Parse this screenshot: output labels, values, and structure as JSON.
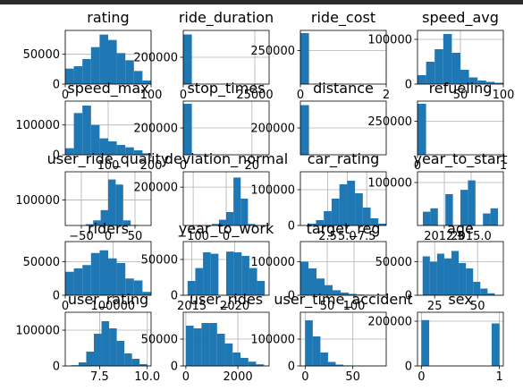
{
  "chart_data": {
    "type": "bar",
    "kind": "histogram-grid",
    "grid": true,
    "bar_color": "#1f77b4",
    "charts": [
      {
        "title": "rating",
        "xlim": [
          0,
          100
        ],
        "ylim": [
          0,
          90000
        ],
        "xticks": [
          {
            "v": 0,
            "t": "0"
          },
          {
            "v": 100,
            "t": "100"
          }
        ],
        "yticks": [
          {
            "v": 0,
            "t": "0"
          },
          {
            "v": 50000,
            "t": "50000"
          }
        ],
        "bins": [
          0,
          10,
          20,
          30,
          40,
          50,
          60,
          70,
          80,
          90,
          100
        ],
        "values": [
          26000,
          30000,
          42000,
          62000,
          83000,
          74000,
          52000,
          40000,
          22000,
          6000
        ]
      },
      {
        "title": "ride_duration",
        "xlim": [
          0,
          30000
        ],
        "ylim": [
          0,
          400000
        ],
        "xticks": [
          {
            "v": 0,
            "t": "0"
          },
          {
            "v": 25000,
            "t": "25000"
          }
        ],
        "yticks": [
          {
            "v": 200000,
            "t": "200000"
          }
        ],
        "bins": [
          0,
          3000,
          6000,
          9000,
          12000,
          15000,
          18000,
          21000,
          24000,
          27000,
          30000
        ],
        "values": [
          370000,
          0,
          0,
          0,
          0,
          0,
          0,
          0,
          0,
          0
        ]
      },
      {
        "title": "ride_cost",
        "xlim": [
          0,
          2
        ],
        "ylim": [
          0,
          400000
        ],
        "xticks": [
          {
            "v": 0,
            "t": "0"
          },
          {
            "v": 2,
            "t": "2"
          }
        ],
        "yticks": [
          {
            "v": 250000,
            "t": "250000"
          }
        ],
        "bins": [
          0,
          0.2,
          0.4,
          0.6,
          0.8,
          1.0,
          1.2,
          1.4,
          1.6,
          1.8,
          2.0
        ],
        "values": [
          380000,
          0,
          0,
          0,
          0,
          0,
          0,
          0,
          0,
          0
        ]
      },
      {
        "title": "speed_avg",
        "xlim": [
          0,
          100
        ],
        "ylim": [
          0,
          120000
        ],
        "xticks": [
          {
            "v": 50,
            "t": "50"
          },
          {
            "v": 100,
            "t": "100"
          }
        ],
        "yticks": [
          {
            "v": 0,
            "t": "0"
          },
          {
            "v": 100000,
            "t": "100000"
          }
        ],
        "bins": [
          0,
          10,
          20,
          30,
          40,
          50,
          60,
          70,
          80,
          90,
          100
        ],
        "values": [
          20000,
          50000,
          78000,
          112000,
          70000,
          32000,
          15000,
          8000,
          5000,
          3000
        ]
      },
      {
        "title": "speed_max",
        "xlim": [
          0,
          200
        ],
        "ylim": [
          0,
          180000
        ],
        "xticks": [
          {
            "v": 100,
            "t": "100"
          },
          {
            "v": 200,
            "t": "200"
          }
        ],
        "yticks": [
          {
            "v": 0,
            "t": "0"
          },
          {
            "v": 100000,
            "t": "100000"
          }
        ],
        "bins": [
          0,
          20,
          40,
          60,
          80,
          100,
          120,
          140,
          160,
          180,
          200
        ],
        "values": [
          22000,
          140000,
          165000,
          100000,
          55000,
          45000,
          33000,
          25000,
          15000,
          5000
        ]
      },
      {
        "title": "stop_times",
        "xlim": [
          0,
          25
        ],
        "ylim": [
          0,
          400000
        ],
        "xticks": [
          {
            "v": 0,
            "t": "0"
          },
          {
            "v": 20,
            "t": "20"
          }
        ],
        "yticks": [
          {
            "v": 200000,
            "t": "200000"
          }
        ],
        "bins": [
          0,
          2.5,
          5,
          7.5,
          10,
          12.5,
          15,
          17.5,
          20,
          22.5,
          25
        ],
        "values": [
          380000,
          4000,
          1000,
          0,
          0,
          0,
          0,
          0,
          0,
          0
        ]
      },
      {
        "title": "distance",
        "xlim": [
          0,
          10
        ],
        "ylim": [
          0,
          400000
        ],
        "xticks": [],
        "yticks": [
          {
            "v": 200000,
            "t": "200000"
          }
        ],
        "bins": [
          0,
          1,
          2,
          3,
          4,
          5,
          6,
          7,
          8,
          9,
          10
        ],
        "values": [
          370000,
          0,
          0,
          0,
          0,
          0,
          0,
          0,
          0,
          0
        ]
      },
      {
        "title": "refueling",
        "xlim": [
          0,
          1
        ],
        "ylim": [
          0,
          400000
        ],
        "xticks": [
          {
            "v": 0,
            "t": "0"
          },
          {
            "v": 1,
            "t": "1"
          }
        ],
        "yticks": [
          {
            "v": 250000,
            "t": "250000"
          }
        ],
        "bins": [
          0,
          0.1,
          0.2,
          0.3,
          0.4,
          0.5,
          0.6,
          0.7,
          0.8,
          0.9,
          1.0
        ],
        "values": [
          380000,
          0,
          0,
          0,
          0,
          0,
          0,
          0,
          0,
          0
        ]
      },
      {
        "title": "user_ride_quality",
        "xlim": [
          -80,
          80
        ],
        "ylim": [
          0,
          210000
        ],
        "xticks": [
          {
            "v": -50,
            "t": "−50"
          },
          {
            "v": 0,
            "t": "0"
          },
          {
            "v": 50,
            "t": "50"
          }
        ],
        "yticks": [
          {
            "v": 100000,
            "t": "100000"
          }
        ],
        "bins": [
          -70,
          -56,
          -42,
          -28,
          -14,
          0,
          14,
          28,
          42,
          56,
          70
        ],
        "values": [
          0,
          0,
          5000,
          20000,
          60000,
          180000,
          160000,
          20000,
          2000,
          0
        ]
      },
      {
        "title": "deviation_normal",
        "xlim": [
          -130,
          130
        ],
        "ylim": [
          0,
          280000
        ],
        "xticks": [
          {
            "v": -100,
            "t": "−100"
          },
          {
            "v": 0,
            "t": "0"
          }
        ],
        "yticks": [
          {
            "v": 200000,
            "t": "200000"
          }
        ],
        "bins": [
          -110,
          -88,
          -66,
          -44,
          -22,
          0,
          22,
          44,
          66,
          88,
          110
        ],
        "values": [
          0,
          1000,
          2000,
          8000,
          30000,
          70000,
          250000,
          140000,
          8000,
          1000
        ]
      },
      {
        "title": "car_rating",
        "xlim": [
          -1,
          10
        ],
        "ylim": [
          0,
          150000
        ],
        "xticks": [
          {
            "v": 2.5,
            "t": "2.5"
          },
          {
            "v": 5.0,
            "t": "5.0"
          },
          {
            "v": 7.5,
            "t": "7.5"
          }
        ],
        "yticks": [
          {
            "v": 0,
            "t": "0"
          },
          {
            "v": 100000,
            "t": "100000"
          }
        ],
        "bins": [
          0,
          1,
          2,
          3,
          4,
          5,
          6,
          7,
          8,
          9,
          10
        ],
        "values": [
          5000,
          15000,
          40000,
          75000,
          115000,
          125000,
          90000,
          50000,
          20000,
          5000
        ]
      },
      {
        "title": "year_to_start",
        "xlim": [
          2010,
          2018
        ],
        "ylim": [
          0,
          125000
        ],
        "xticks": [
          {
            "v": 2012.5,
            "t": "2012.5"
          },
          {
            "v": 2015.0,
            "t": "2015.0"
          }
        ],
        "yticks": [
          {
            "v": 100000,
            "t": "100000"
          }
        ],
        "bins": [
          2010.5,
          2011.2,
          2011.9,
          2012.6,
          2013.3,
          2014,
          2014.7,
          2015.4,
          2016.1,
          2016.8,
          2017.5
        ],
        "values": [
          32000,
          40000,
          0,
          73000,
          0,
          83000,
          105000,
          0,
          28000,
          40000
        ]
      },
      {
        "title": "riders",
        "xlim": [
          0,
          180000
        ],
        "ylim": [
          0,
          80000
        ],
        "xticks": [
          {
            "v": 0,
            "t": "0"
          },
          {
            "v": 100000,
            "t": "100000"
          }
        ],
        "yticks": [
          {
            "v": 0,
            "t": "0"
          },
          {
            "v": 50000,
            "t": "50000"
          }
        ],
        "bins": [
          0,
          18000,
          36000,
          54000,
          72000,
          90000,
          108000,
          126000,
          144000,
          162000,
          180000
        ],
        "values": [
          35000,
          40000,
          45000,
          63000,
          67000,
          55000,
          48000,
          25000,
          22000,
          5000
        ]
      },
      {
        "title": "year_to_work",
        "xlim": [
          2014,
          2024
        ],
        "ylim": [
          0,
          75000
        ],
        "xticks": [
          {
            "v": 2015,
            "t": "2015"
          },
          {
            "v": 2020,
            "t": "2020"
          }
        ],
        "yticks": [
          {
            "v": 0,
            "t": "0"
          },
          {
            "v": 50000,
            "t": "50000"
          }
        ],
        "bins": [
          2014.5,
          2015.4,
          2016.3,
          2017.2,
          2018.1,
          2019,
          2019.9,
          2020.8,
          2021.7,
          2022.6,
          2023.5
        ],
        "values": [
          20000,
          38000,
          60000,
          58000,
          0,
          61000,
          60000,
          55000,
          38000,
          20000
        ]
      },
      {
        "title": "target_reg",
        "xlim": [
          0,
          160
        ],
        "ylim": [
          0,
          160000
        ],
        "xticks": [
          {
            "v": 50,
            "t": "50"
          },
          {
            "v": 100,
            "t": "100"
          }
        ],
        "yticks": [
          {
            "v": 0,
            "t": "0"
          },
          {
            "v": 100000,
            "t": "100000"
          }
        ],
        "bins": [
          0,
          15,
          30,
          45,
          60,
          75,
          90,
          105,
          120,
          135,
          150
        ],
        "values": [
          100000,
          80000,
          50000,
          30000,
          15000,
          8000,
          4000,
          2000,
          1000,
          500
        ]
      },
      {
        "title": "age",
        "xlim": [
          15,
          65
        ],
        "ylim": [
          0,
          80000
        ],
        "xticks": [
          {
            "v": 25,
            "t": "25"
          },
          {
            "v": 50,
            "t": "50"
          }
        ],
        "yticks": [
          {
            "v": 0,
            "t": "0"
          },
          {
            "v": 50000,
            "t": "50000"
          }
        ],
        "bins": [
          18,
          22.2,
          26.4,
          30.6,
          34.8,
          39,
          43.2,
          47.4,
          51.6,
          55.8,
          60
        ],
        "values": [
          58000,
          50000,
          62000,
          55000,
          66000,
          48000,
          40000,
          20000,
          10000,
          3000
        ]
      },
      {
        "title": "user_rating",
        "xlim": [
          5.7,
          10.2
        ],
        "ylim": [
          0,
          150000
        ],
        "xticks": [
          {
            "v": 7.5,
            "t": "7.5"
          },
          {
            "v": 10.0,
            "t": "10.0"
          }
        ],
        "yticks": [
          {
            "v": 0,
            "t": "0"
          },
          {
            "v": 100000,
            "t": "100000"
          }
        ],
        "bins": [
          6,
          6.4,
          6.8,
          7.2,
          7.6,
          8.0,
          8.4,
          8.8,
          9.2,
          9.6,
          10
        ],
        "values": [
          2000,
          10000,
          40000,
          90000,
          125000,
          105000,
          70000,
          35000,
          20000,
          5000
        ]
      },
      {
        "title": "user_rides",
        "xlim": [
          -100,
          3200
        ],
        "ylim": [
          0,
          100000
        ],
        "xticks": [
          {
            "v": 0,
            "t": "0"
          },
          {
            "v": 2000,
            "t": "2000"
          }
        ],
        "yticks": [
          {
            "v": 0,
            "t": "0"
          },
          {
            "v": 50000,
            "t": "50000"
          }
        ],
        "bins": [
          0,
          300,
          600,
          900,
          1200,
          1500,
          1800,
          2100,
          2400,
          2700,
          3000
        ],
        "values": [
          75000,
          70000,
          80000,
          80000,
          60000,
          42000,
          25000,
          15000,
          8000,
          3000
        ]
      },
      {
        "title": "user_time_accident",
        "xlim": [
          -5,
          85
        ],
        "ylim": [
          0,
          200000
        ],
        "xticks": [
          {
            "v": 0,
            "t": "0"
          },
          {
            "v": 50,
            "t": "50"
          }
        ],
        "yticks": [
          {
            "v": 0,
            "t": "0"
          },
          {
            "v": 100000,
            "t": "100000"
          }
        ],
        "bins": [
          0,
          8,
          16,
          24,
          32,
          40,
          48,
          56,
          64,
          72,
          80
        ],
        "values": [
          170000,
          110000,
          50000,
          15000,
          5000,
          2000,
          1000,
          500,
          0,
          0
        ]
      },
      {
        "title": "sex",
        "xlim": [
          -0.05,
          1.05
        ],
        "ylim": [
          0,
          240000
        ],
        "xticks": [
          {
            "v": 0,
            "t": "0"
          },
          {
            "v": 1,
            "t": "1"
          }
        ],
        "yticks": [
          {
            "v": 0,
            "t": "0"
          },
          {
            "v": 200000,
            "t": "200000"
          }
        ],
        "bins": [
          0,
          0.1,
          0.2,
          0.3,
          0.4,
          0.5,
          0.6,
          0.7,
          0.8,
          0.9,
          1.0
        ],
        "values": [
          205000,
          0,
          0,
          0,
          0,
          0,
          0,
          0,
          0,
          190000
        ]
      }
    ]
  }
}
